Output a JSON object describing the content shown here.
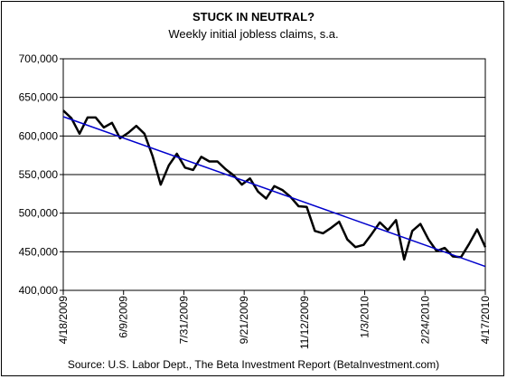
{
  "chart_data": {
    "type": "line",
    "title": "STUCK IN NEUTRAL?",
    "subtitle": "Weekly initial jobless claims, s.a.",
    "source": "Source: U.S. Labor Dept., The Beta Investment Report (BetaInvestment.com)",
    "ylim": [
      400000,
      700000
    ],
    "yticks": [
      "700,000",
      "650,000",
      "600,000",
      "550,000",
      "500,000",
      "450,000",
      "400,000"
    ],
    "ytick_values": [
      700000,
      650000,
      600000,
      550000,
      500000,
      450000,
      400000
    ],
    "xtick_labels": [
      "4/18/2009",
      "6/9/2009",
      "7/31/2009",
      "9/21/2009",
      "11/12/2009",
      "1/3/2010",
      "2/24/2010",
      "4/17/2010"
    ],
    "xtick_weeks": [
      0,
      7.43,
      14.86,
      22.29,
      29.71,
      37.14,
      44.57,
      52
    ],
    "grid": true,
    "series": [
      {
        "color": "#000000",
        "values": [
          633000,
          623000,
          603000,
          624000,
          624000,
          611000,
          617000,
          597000,
          604000,
          613000,
          603000,
          574000,
          537000,
          562000,
          577000,
          559000,
          556000,
          573000,
          567000,
          567000,
          557000,
          549000,
          537000,
          545000,
          528000,
          519000,
          535000,
          530000,
          521000,
          509000,
          508000,
          477000,
          474000,
          481000,
          489000,
          466000,
          456000,
          459000,
          473000,
          488000,
          478000,
          491000,
          440000,
          477000,
          486000,
          466000,
          451000,
          455000,
          444000,
          443000,
          460000,
          479000,
          456000
        ]
      },
      {
        "color": "#0000cc",
        "values": [
          625000,
          431000
        ]
      }
    ]
  }
}
